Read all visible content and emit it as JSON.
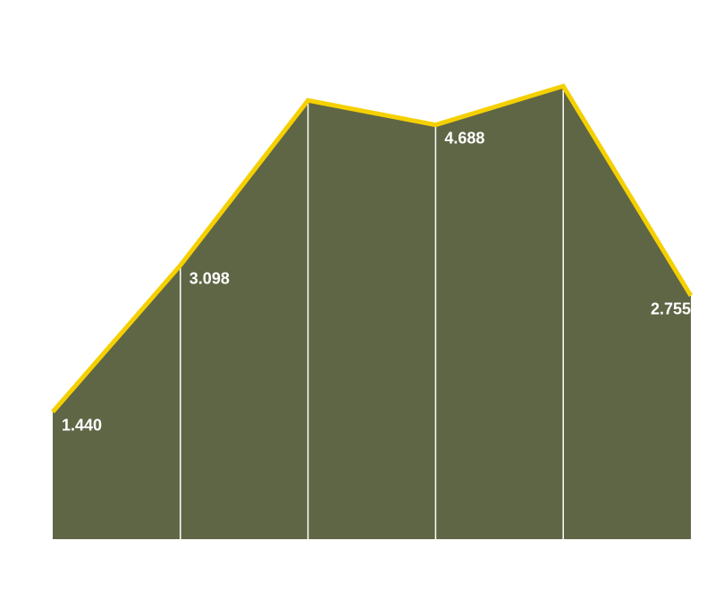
{
  "chart_data": {
    "type": "area",
    "categories": [
      null,
      null,
      null,
      null,
      null,
      null
    ],
    "values": [
      1.44,
      3.098,
      4.965,
      4.688,
      5.127,
      2.755
    ],
    "value_labels": [
      "1.440",
      "3.098",
      null,
      "4.688",
      null,
      "2.755"
    ],
    "color": "#5f6645",
    "line_color": "#f5d000",
    "ylim": [
      0,
      6
    ]
  }
}
